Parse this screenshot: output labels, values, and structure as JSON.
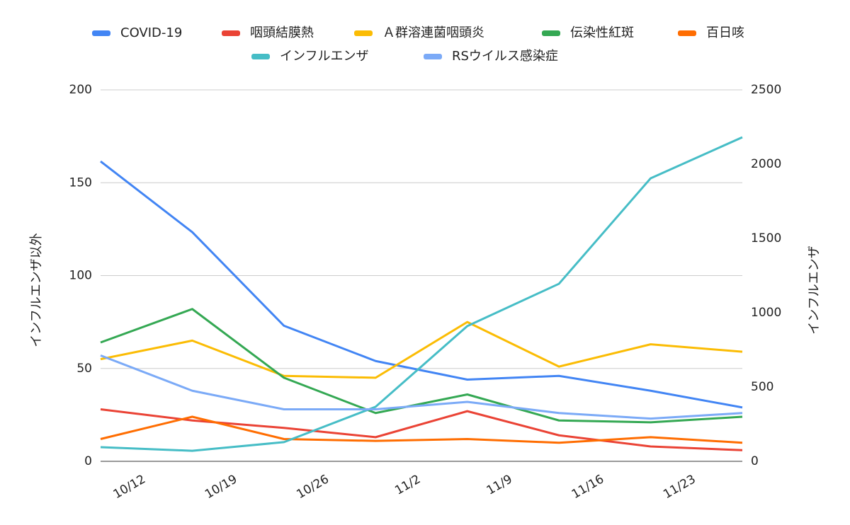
{
  "chart_data": {
    "type": "line",
    "categories": [
      "10/12",
      "10/19",
      "10/26",
      "11/2",
      "11/9",
      "11/16",
      "11/23",
      null
    ],
    "y_label": "インフルエンザ以外",
    "y2_label": "インフルエンザ",
    "ylim": [
      0,
      200
    ],
    "yticks": [
      0,
      50,
      100,
      150,
      200
    ],
    "y2lim": [
      0,
      2500
    ],
    "y2ticks": [
      0,
      500,
      1000,
      1500,
      2000,
      2500
    ],
    "grid": true,
    "legend": "top",
    "series": [
      {
        "name": "COVID-19",
        "color": "#4285f4",
        "values": [
          161.5,
          123.4,
          73,
          54,
          44,
          46,
          38,
          29
        ]
      },
      {
        "name": "咽頭結膜熱",
        "color": "#ea4335",
        "values": [
          28,
          22,
          18,
          13,
          27,
          14,
          8,
          6
        ]
      },
      {
        "name": "Ａ群溶連菌咽頭炎",
        "color": "#fbbc04",
        "values": [
          55,
          65,
          46,
          45,
          75,
          51,
          63,
          59
        ]
      },
      {
        "name": "伝染性紅斑",
        "color": "#34a853",
        "values": [
          64,
          82,
          45,
          26,
          36,
          22,
          21,
          24
        ]
      },
      {
        "name": "百日咳",
        "color": "#ff6d01",
        "values": [
          12,
          24,
          12,
          11,
          12,
          10,
          13,
          10
        ]
      },
      {
        "name": "インフルエンザ",
        "color": "#46bdc6",
        "axis": "y2",
        "values": [
          95,
          71,
          129,
          367,
          910,
          1195,
          1905,
          2181
        ]
      },
      {
        "name": "RSウイルス感染症",
        "color": "#7baaf7",
        "values": [
          57,
          38,
          28,
          28,
          32,
          26,
          23,
          26
        ]
      }
    ]
  }
}
